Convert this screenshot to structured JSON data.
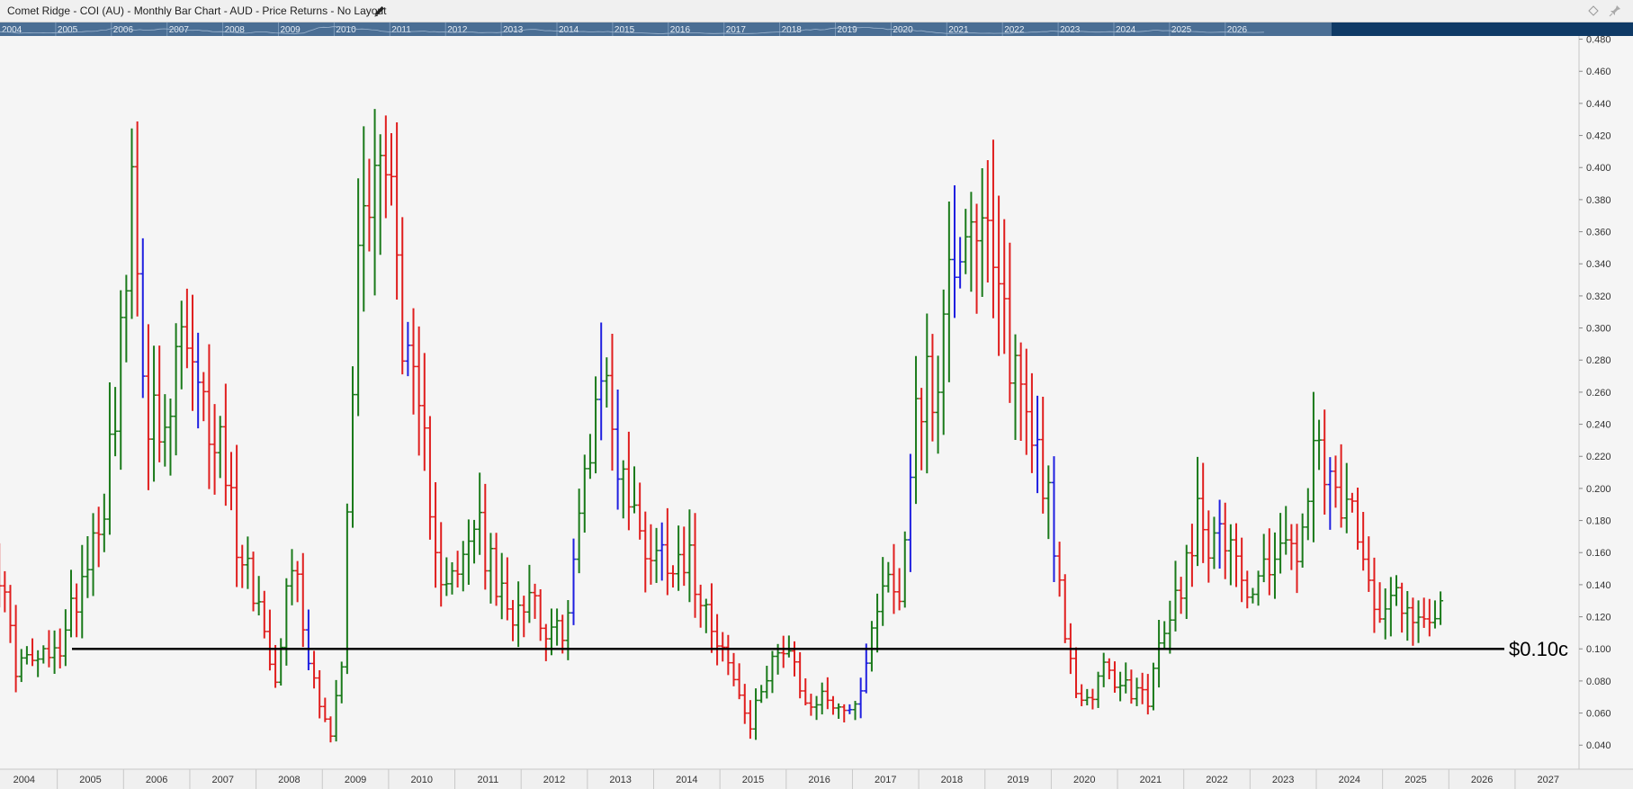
{
  "window": {
    "title": "Comet Ridge - COI (AU) - Monthly Bar Chart - AUD - Price Returns - No Layout"
  },
  "navigator": {
    "years": [
      "2004",
      "2005",
      "2006",
      "2007",
      "2008",
      "2009",
      "2010",
      "2011",
      "2012",
      "2013",
      "2014",
      "2015",
      "2016",
      "2017",
      "2018",
      "2019",
      "2020",
      "2021",
      "2022",
      "2023",
      "2024",
      "2025",
      "2026"
    ]
  },
  "colors": {
    "up": "#1a7a1a",
    "down": "#e01e1e",
    "neutral": "#1f1fe0",
    "support_line": "#000000",
    "background": "#f5f5f5",
    "navigator": "#4a6e94"
  },
  "chart_data": {
    "type": "bar",
    "subtype": "monthly-ohlc",
    "title": "Comet Ridge - COI (AU) - Monthly Bar Chart - AUD - Price Returns - No Layout",
    "x_labels": [
      "2004",
      "2005",
      "2006",
      "2007",
      "2008",
      "2009",
      "2010",
      "2011",
      "2012",
      "2013",
      "2014",
      "2015",
      "2016",
      "2017",
      "2018",
      "2019",
      "2020",
      "2021",
      "2022",
      "2023",
      "2024",
      "2025",
      "2026",
      "2027"
    ],
    "xlim": [
      "2004-01",
      "2027-12"
    ],
    "ylim": [
      0.025,
      0.482
    ],
    "y_ticks": [
      "0.040",
      "0.060",
      "0.080",
      "0.100",
      "0.120",
      "0.140",
      "0.160",
      "0.180",
      "0.200",
      "0.220",
      "0.240",
      "0.260",
      "0.280",
      "0.300",
      "0.320",
      "0.340",
      "0.360",
      "0.380",
      "0.400",
      "0.420",
      "0.440",
      "0.460",
      "0.480"
    ],
    "grid": false,
    "annotations": [
      {
        "type": "horizontal-line",
        "value": 0.1,
        "label": "$0.10c"
      }
    ],
    "anchors": [
      {
        "date": "2004-01",
        "value": 0.165
      },
      {
        "date": "2004-05",
        "value": 0.09
      },
      {
        "date": "2004-12",
        "value": 0.095
      },
      {
        "date": "2005-02",
        "value": 0.11
      },
      {
        "date": "2005-06",
        "value": 0.16
      },
      {
        "date": "2005-09",
        "value": 0.195
      },
      {
        "date": "2005-12",
        "value": 0.29
      },
      {
        "date": "2006-02",
        "value": 0.37
      },
      {
        "date": "2006-05",
        "value": 0.25
      },
      {
        "date": "2006-08",
        "value": 0.22
      },
      {
        "date": "2006-11",
        "value": 0.3
      },
      {
        "date": "2007-02",
        "value": 0.25
      },
      {
        "date": "2007-06",
        "value": 0.23
      },
      {
        "date": "2007-09",
        "value": 0.17
      },
      {
        "date": "2007-12",
        "value": 0.14
      },
      {
        "date": "2008-04",
        "value": 0.085
      },
      {
        "date": "2008-07",
        "value": 0.16
      },
      {
        "date": "2008-10",
        "value": 0.095
      },
      {
        "date": "2009-02",
        "value": 0.045
      },
      {
        "date": "2009-04",
        "value": 0.09
      },
      {
        "date": "2009-07",
        "value": 0.35
      },
      {
        "date": "2009-10",
        "value": 0.42
      },
      {
        "date": "2010-01",
        "value": 0.38
      },
      {
        "date": "2010-04",
        "value": 0.27
      },
      {
        "date": "2010-07",
        "value": 0.22
      },
      {
        "date": "2010-10",
        "value": 0.15
      },
      {
        "date": "2011-01",
        "value": 0.14
      },
      {
        "date": "2011-04",
        "value": 0.18
      },
      {
        "date": "2011-07",
        "value": 0.15
      },
      {
        "date": "2011-10",
        "value": 0.12
      },
      {
        "date": "2012-02",
        "value": 0.14
      },
      {
        "date": "2012-06",
        "value": 0.105
      },
      {
        "date": "2012-09",
        "value": 0.12
      },
      {
        "date": "2012-12",
        "value": 0.21
      },
      {
        "date": "2013-03",
        "value": 0.28
      },
      {
        "date": "2013-06",
        "value": 0.22
      },
      {
        "date": "2013-10",
        "value": 0.17
      },
      {
        "date": "2014-01",
        "value": 0.16
      },
      {
        "date": "2014-06",
        "value": 0.16
      },
      {
        "date": "2014-10",
        "value": 0.13
      },
      {
        "date": "2015-02",
        "value": 0.09
      },
      {
        "date": "2015-06",
        "value": 0.05
      },
      {
        "date": "2015-10",
        "value": 0.1
      },
      {
        "date": "2016-01",
        "value": 0.095
      },
      {
        "date": "2016-04",
        "value": 0.065
      },
      {
        "date": "2016-08",
        "value": 0.07
      },
      {
        "date": "2016-12",
        "value": 0.06
      },
      {
        "date": "2017-03",
        "value": 0.09
      },
      {
        "date": "2017-06",
        "value": 0.15
      },
      {
        "date": "2017-09",
        "value": 0.13
      },
      {
        "date": "2017-12",
        "value": 0.26
      },
      {
        "date": "2018-03",
        "value": 0.26
      },
      {
        "date": "2018-07",
        "value": 0.35
      },
      {
        "date": "2018-10",
        "value": 0.38
      },
      {
        "date": "2019-01",
        "value": 0.34
      },
      {
        "date": "2019-04",
        "value": 0.3
      },
      {
        "date": "2019-08",
        "value": 0.25
      },
      {
        "date": "2019-12",
        "value": 0.2
      },
      {
        "date": "2020-03",
        "value": 0.1
      },
      {
        "date": "2020-06",
        "value": 0.065
      },
      {
        "date": "2020-10",
        "value": 0.085
      },
      {
        "date": "2021-02",
        "value": 0.075
      },
      {
        "date": "2021-06",
        "value": 0.07
      },
      {
        "date": "2021-09",
        "value": 0.11
      },
      {
        "date": "2021-12",
        "value": 0.14
      },
      {
        "date": "2022-03",
        "value": 0.19
      },
      {
        "date": "2022-06",
        "value": 0.16
      },
      {
        "date": "2022-09",
        "value": 0.18
      },
      {
        "date": "2022-12",
        "value": 0.13
      },
      {
        "date": "2023-03",
        "value": 0.15
      },
      {
        "date": "2023-06",
        "value": 0.17
      },
      {
        "date": "2023-09",
        "value": 0.15
      },
      {
        "date": "2023-12",
        "value": 0.22
      },
      {
        "date": "2024-03",
        "value": 0.195
      },
      {
        "date": "2024-06",
        "value": 0.19
      },
      {
        "date": "2024-09",
        "value": 0.15
      },
      {
        "date": "2024-12",
        "value": 0.13
      },
      {
        "date": "2025-03",
        "value": 0.14
      },
      {
        "date": "2025-06",
        "value": 0.115
      },
      {
        "date": "2025-08",
        "value": 0.125
      },
      {
        "date": "2025-11",
        "value": 0.13
      }
    ]
  }
}
